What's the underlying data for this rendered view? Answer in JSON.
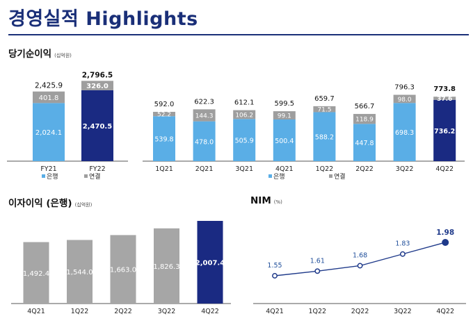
{
  "page": {
    "title": "경영실적 Highlights"
  },
  "sections": {
    "net_income": {
      "title": "당기순이익",
      "unit": "(십억원)"
    },
    "interest_income": {
      "title": "이자이익 (은행)",
      "unit": "(십억원)"
    },
    "nim": {
      "title": "NIM",
      "unit": "(%)"
    }
  },
  "legend": {
    "bank": "은행",
    "consolidated": "연결"
  },
  "colors": {
    "bank_light": "#5aaee6",
    "bank_dark": "#1a2a82",
    "consolidated": "#9e9e9e",
    "gray_bar": "#a6a6a6",
    "nim_line": "#1f3a8a",
    "title": "#1a2f78"
  },
  "chart_data": [
    {
      "id": "annual-net-income",
      "type": "bar",
      "stacked": true,
      "categories": [
        "FY21",
        "FY22"
      ],
      "series": [
        {
          "name": "은행",
          "values": [
            2024.1,
            2470.5
          ],
          "labels": [
            "2,024.1",
            "2,470.5"
          ]
        },
        {
          "name": "연결",
          "values": [
            401.8,
            326.0
          ],
          "labels": [
            "401.8",
            "326.0"
          ]
        }
      ],
      "totals": [
        "2,425.9",
        "2,796.5"
      ],
      "highlight_index": 1
    },
    {
      "id": "quarterly-net-income",
      "type": "bar",
      "stacked": true,
      "categories": [
        "1Q21",
        "2Q21",
        "3Q21",
        "4Q21",
        "1Q22",
        "2Q22",
        "3Q22",
        "4Q22"
      ],
      "series": [
        {
          "name": "은행",
          "values": [
            539.8,
            478.0,
            505.9,
            500.4,
            588.2,
            447.8,
            698.3,
            736.2
          ],
          "labels": [
            "539.8",
            "478.0",
            "505.9",
            "500.4",
            "588.2",
            "447.8",
            "698.3",
            "736.2"
          ]
        },
        {
          "name": "연결",
          "values": [
            52.2,
            144.3,
            106.2,
            99.1,
            71.5,
            118.9,
            98.0,
            37.6
          ],
          "labels": [
            "52.2",
            "144.3",
            "106.2",
            "99.1",
            "71.5",
            "118.9",
            "98.0",
            "37.6"
          ]
        }
      ],
      "totals": [
        "592.0",
        "622.3",
        "612.1",
        "599.5",
        "659.7",
        "566.7",
        "796.3",
        "773.8"
      ],
      "highlight_index": 7
    },
    {
      "id": "interest-income",
      "type": "bar",
      "categories": [
        "4Q21",
        "1Q22",
        "2Q22",
        "3Q22",
        "4Q22"
      ],
      "values": [
        1492.4,
        1544.0,
        1663.0,
        1826.3,
        2007.4
      ],
      "labels": [
        "1,492.4",
        "1,544.0",
        "1,663.0",
        "1,826.3",
        "2,007.4"
      ],
      "highlight_index": 4
    },
    {
      "id": "nim",
      "type": "line",
      "categories": [
        "4Q21",
        "1Q22",
        "2Q22",
        "3Q22",
        "4Q22"
      ],
      "values": [
        1.55,
        1.61,
        1.68,
        1.83,
        1.98
      ],
      "labels": [
        "1.55",
        "1.61",
        "1.68",
        "1.83",
        "1.98"
      ],
      "highlight_index": 4
    }
  ]
}
